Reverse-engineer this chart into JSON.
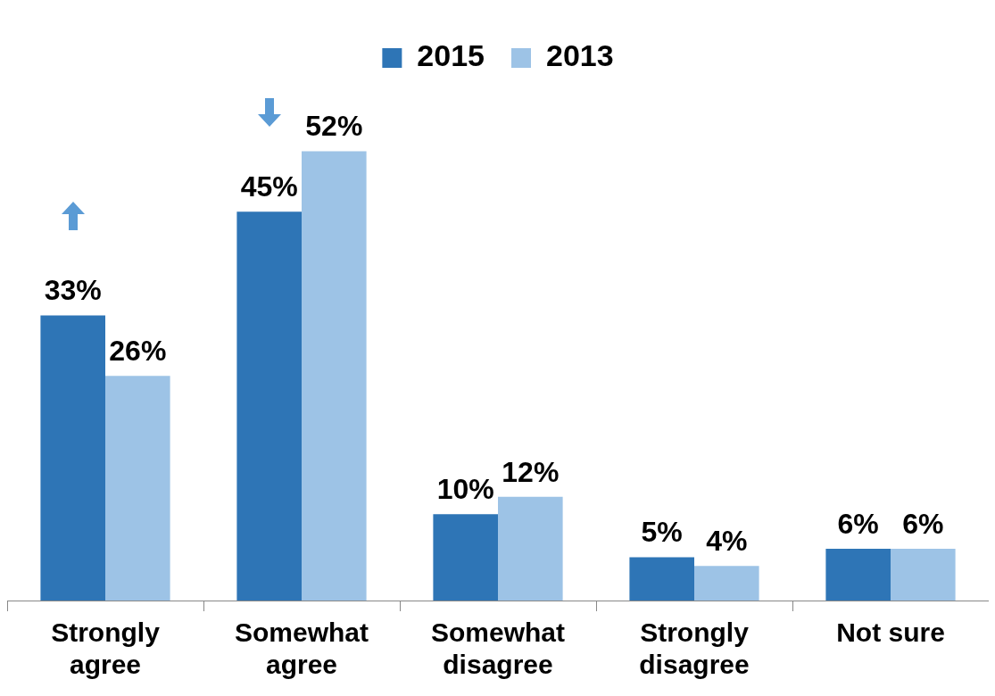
{
  "chart_data": {
    "type": "bar",
    "categories": [
      "Strongly agree",
      "Somewhat agree",
      "Somewhat disagree",
      "Strongly disagree",
      "Not sure"
    ],
    "series": [
      {
        "name": "2015",
        "color": "#2e75b6",
        "values": [
          33,
          45,
          10,
          5,
          6
        ],
        "value_labels": [
          "33%",
          "45%",
          "10%",
          "5%",
          "6%"
        ]
      },
      {
        "name": "2013",
        "color": "#9dc3e6",
        "values": [
          26,
          52,
          12,
          4,
          6
        ],
        "value_labels": [
          "26%",
          "52%",
          "12%",
          "4%",
          "6%"
        ]
      }
    ],
    "legend": "top",
    "grid": false
  }
}
